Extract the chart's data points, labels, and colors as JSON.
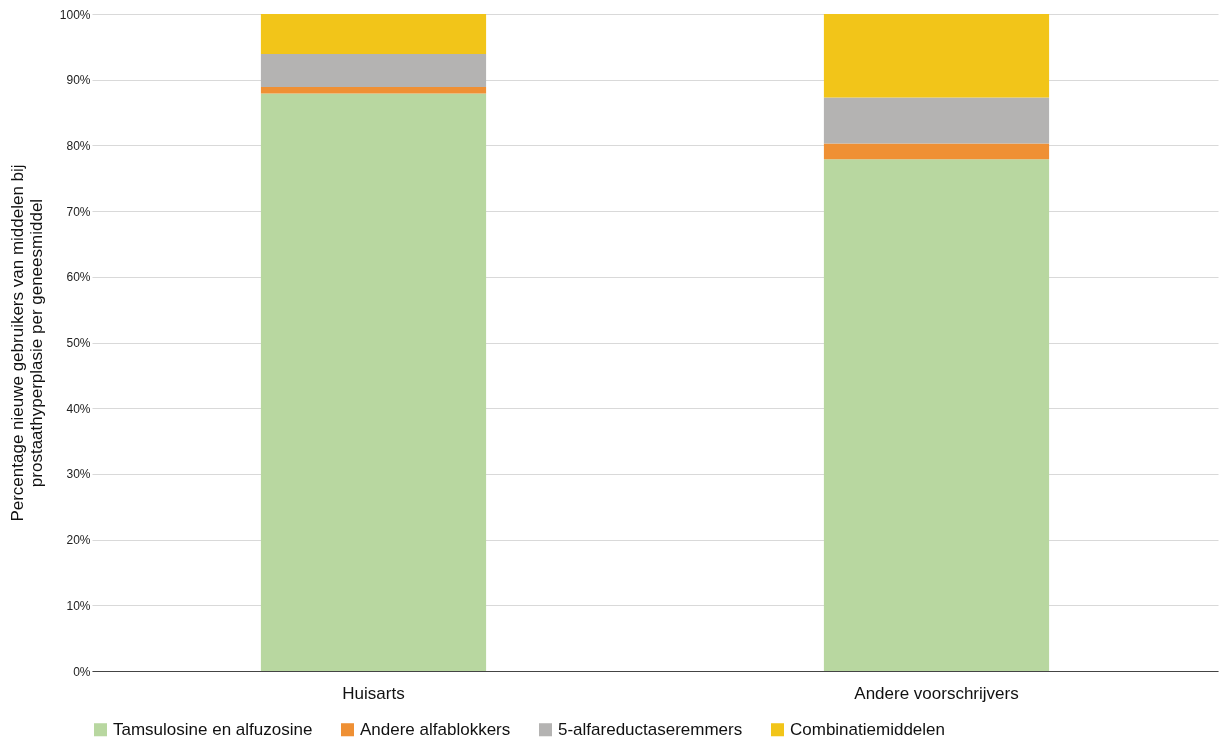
{
  "chart_data": {
    "type": "bar",
    "stacked": true,
    "ylabel": "Percentage nieuwe gebruikers van middelen bij\nprostaathyperplasie per geneesmiddel",
    "categories": [
      "Huisarts",
      "Andere voorschrijvers"
    ],
    "series": [
      {
        "name": "Tamsulosine en alfuzosine",
        "color": "#b8d7a0",
        "values": [
          87.9,
          77.9
        ]
      },
      {
        "name": "Andere alfablokkers",
        "color": "#ef9034",
        "values": [
          1.0,
          2.4
        ]
      },
      {
        "name": "5-alfareductaseremmers",
        "color": "#b4b3b2",
        "values": [
          5.0,
          7.0
        ]
      },
      {
        "name": "Combinatiemiddelen",
        "color": "#f2c519",
        "values": [
          6.1,
          12.7
        ]
      }
    ],
    "ylim": [
      0,
      100
    ],
    "yticks": [
      {
        "value": 0,
        "label": "0%"
      },
      {
        "value": 10,
        "label": "10%"
      },
      {
        "value": 20,
        "label": "20%"
      },
      {
        "value": 30,
        "label": "30%"
      },
      {
        "value": 40,
        "label": "40%"
      },
      {
        "value": 50,
        "label": "50%"
      },
      {
        "value": 60,
        "label": "60%"
      },
      {
        "value": 70,
        "label": "70%"
      },
      {
        "value": 80,
        "label": "80%"
      },
      {
        "value": 90,
        "label": "90%"
      },
      {
        "value": 100,
        "label": "100%"
      }
    ],
    "grid": "y",
    "legend": "bottom"
  }
}
